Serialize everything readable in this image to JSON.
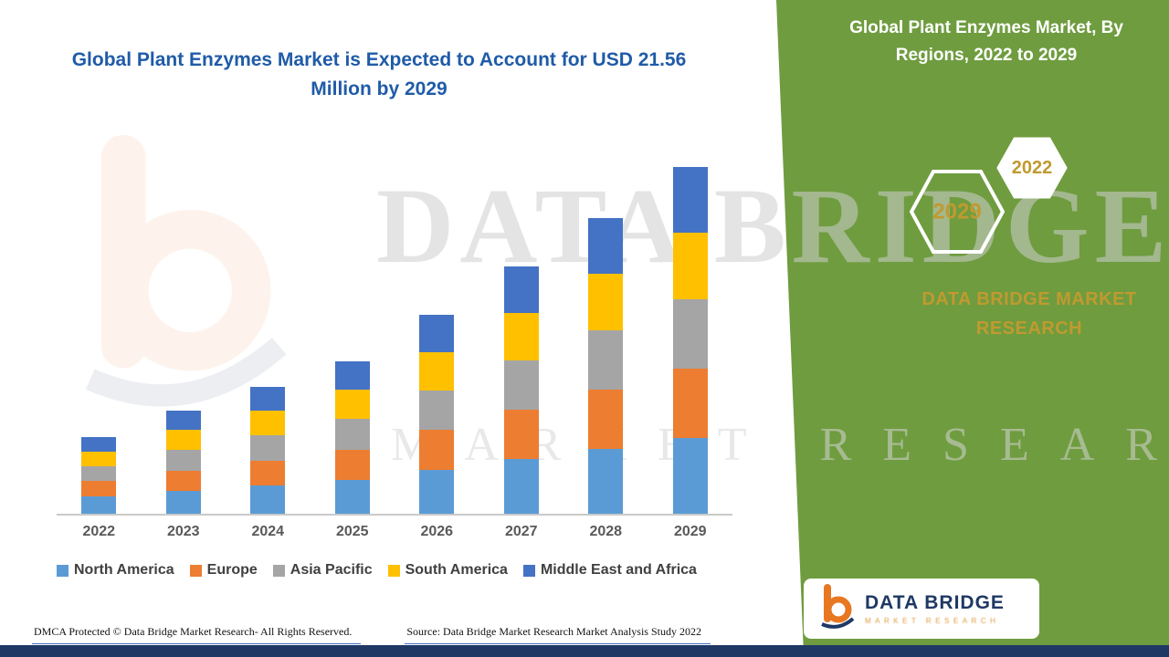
{
  "colors": {
    "accent_green": "#6F9C3F",
    "navy": "#1F3864",
    "gold": "#C09A2F",
    "title_blue": "#1F5BA8"
  },
  "chart_data": {
    "type": "bar",
    "subtype": "stacked",
    "title": "Global Plant Enzymes Market is Expected to Account for USD 21.56 Million by 2029",
    "categories": [
      "2022",
      "2023",
      "2024",
      "2025",
      "2026",
      "2027",
      "2028",
      "2029"
    ],
    "series": [
      {
        "name": "North America",
        "color": "#5B9BD5",
        "values": [
          1.06,
          1.41,
          1.74,
          2.09,
          2.73,
          3.39,
          4.05,
          4.74
        ]
      },
      {
        "name": "Europe",
        "color": "#ED7D31",
        "values": [
          0.96,
          1.28,
          1.58,
          1.9,
          2.48,
          3.08,
          3.68,
          4.31
        ]
      },
      {
        "name": "Asia Pacific",
        "color": "#A5A5A5",
        "values": [
          0.96,
          1.28,
          1.58,
          1.9,
          2.48,
          3.08,
          3.68,
          4.31
        ]
      },
      {
        "name": "South America",
        "color": "#FFC000",
        "values": [
          0.91,
          1.22,
          1.5,
          1.81,
          2.36,
          2.93,
          3.5,
          4.1
        ]
      },
      {
        "name": "Middle East and Africa",
        "color": "#4472C4",
        "values": [
          0.91,
          1.21,
          1.5,
          1.8,
          2.35,
          2.92,
          3.49,
          4.1
        ]
      }
    ],
    "totals_by_year": [
      4.8,
      6.4,
      7.9,
      9.5,
      12.4,
      15.4,
      18.4,
      21.56
    ],
    "ylim": [
      0,
      21.56
    ],
    "unit": "USD Million",
    "grid": false,
    "legend_position": "bottom"
  },
  "right_panel": {
    "title": "Global Plant Enzymes Market, By Regions, 2022 to 2029",
    "hex_back": "2029",
    "hex_front": "2022",
    "brand": "DATA BRIDGE MARKET RESEARCH",
    "logo_text": "DATA BRIDGE",
    "logo_tagline": "MARKET RESEARCH"
  },
  "watermark": {
    "line1": "DATA BRIDGE",
    "line2": "MARKET RESEARCH"
  },
  "footer": {
    "dmca": "DMCA Protected © Data Bridge Market Research- All Rights Reserved.",
    "source": "Source: Data Bridge Market Research Market Analysis Study 2022"
  }
}
